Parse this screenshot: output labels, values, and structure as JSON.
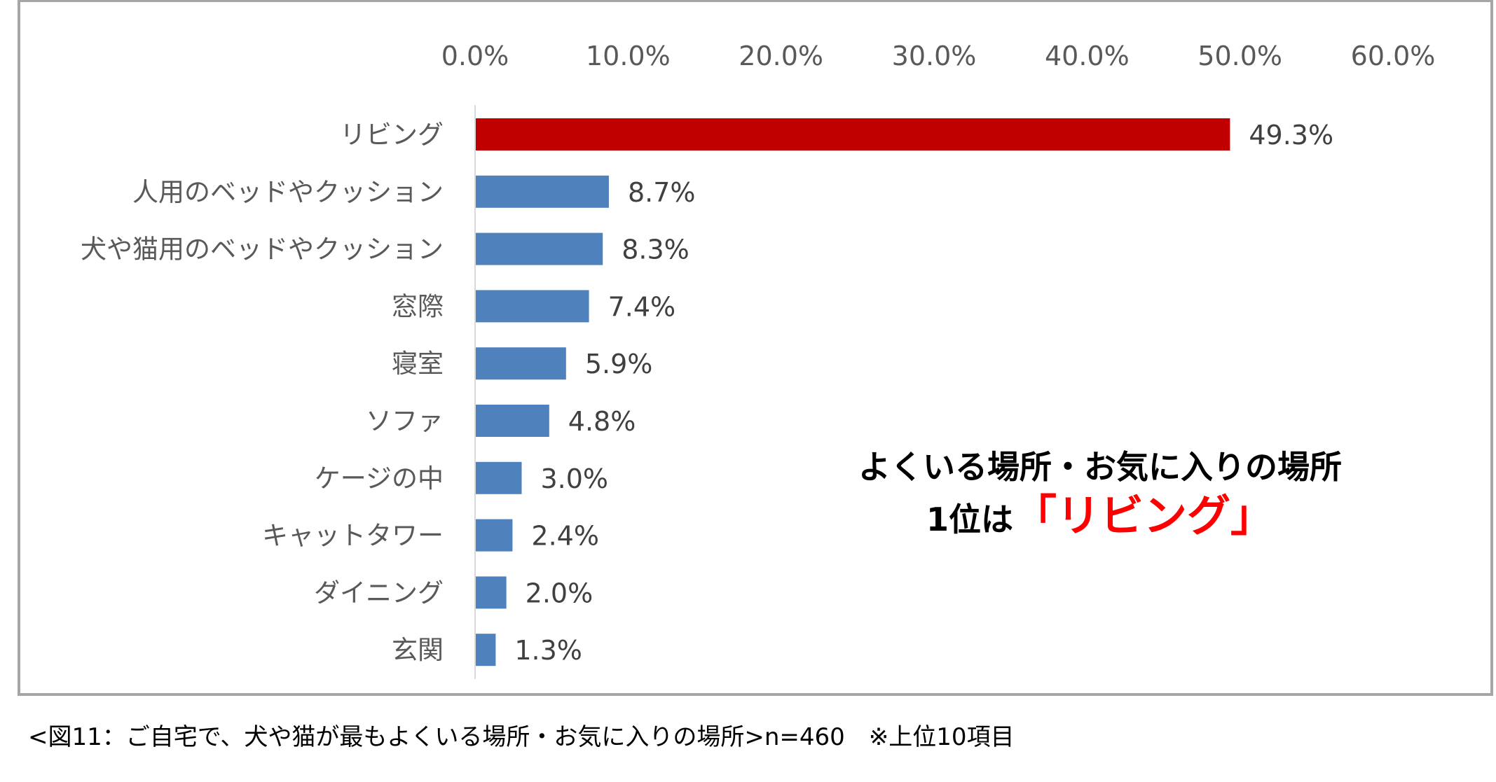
{
  "chart_data": {
    "type": "bar",
    "orientation": "horizontal",
    "categories": [
      "リビング",
      "人用のベッドやクッション",
      "犬や猫用のベッドやクッション",
      "窓際",
      "寝室",
      "ソファ",
      "ケージの中",
      "キャットタワー",
      "ダイニング",
      "玄関"
    ],
    "values": [
      49.3,
      8.7,
      8.3,
      7.4,
      5.9,
      4.8,
      3.0,
      2.4,
      2.0,
      1.3
    ],
    "data_labels": [
      "49.3%",
      "8.7%",
      "8.3%",
      "7.4%",
      "5.9%",
      "4.8%",
      "3.0%",
      "2.4%",
      "2.0%",
      "1.3%"
    ],
    "xlim": [
      0,
      60
    ],
    "x_ticks": [
      "0.0%",
      "10.0%",
      "20.0%",
      "30.0%",
      "40.0%",
      "50.0%",
      "60.0%"
    ],
    "axis_position": "top",
    "grid": false,
    "colors": {
      "highlight": "#c00000",
      "default": "#4f81bd"
    },
    "title": "",
    "xlabel": "",
    "ylabel": ""
  },
  "annotation": {
    "line1": "よくいる場所・お気に入りの場所",
    "line2_prefix": "1位は",
    "line2_highlight": "「リビング」"
  },
  "caption": "<図11：ご自宅で、犬や猫が最もよくいる場所・お気に入りの場所>n=460　※上位10項目"
}
